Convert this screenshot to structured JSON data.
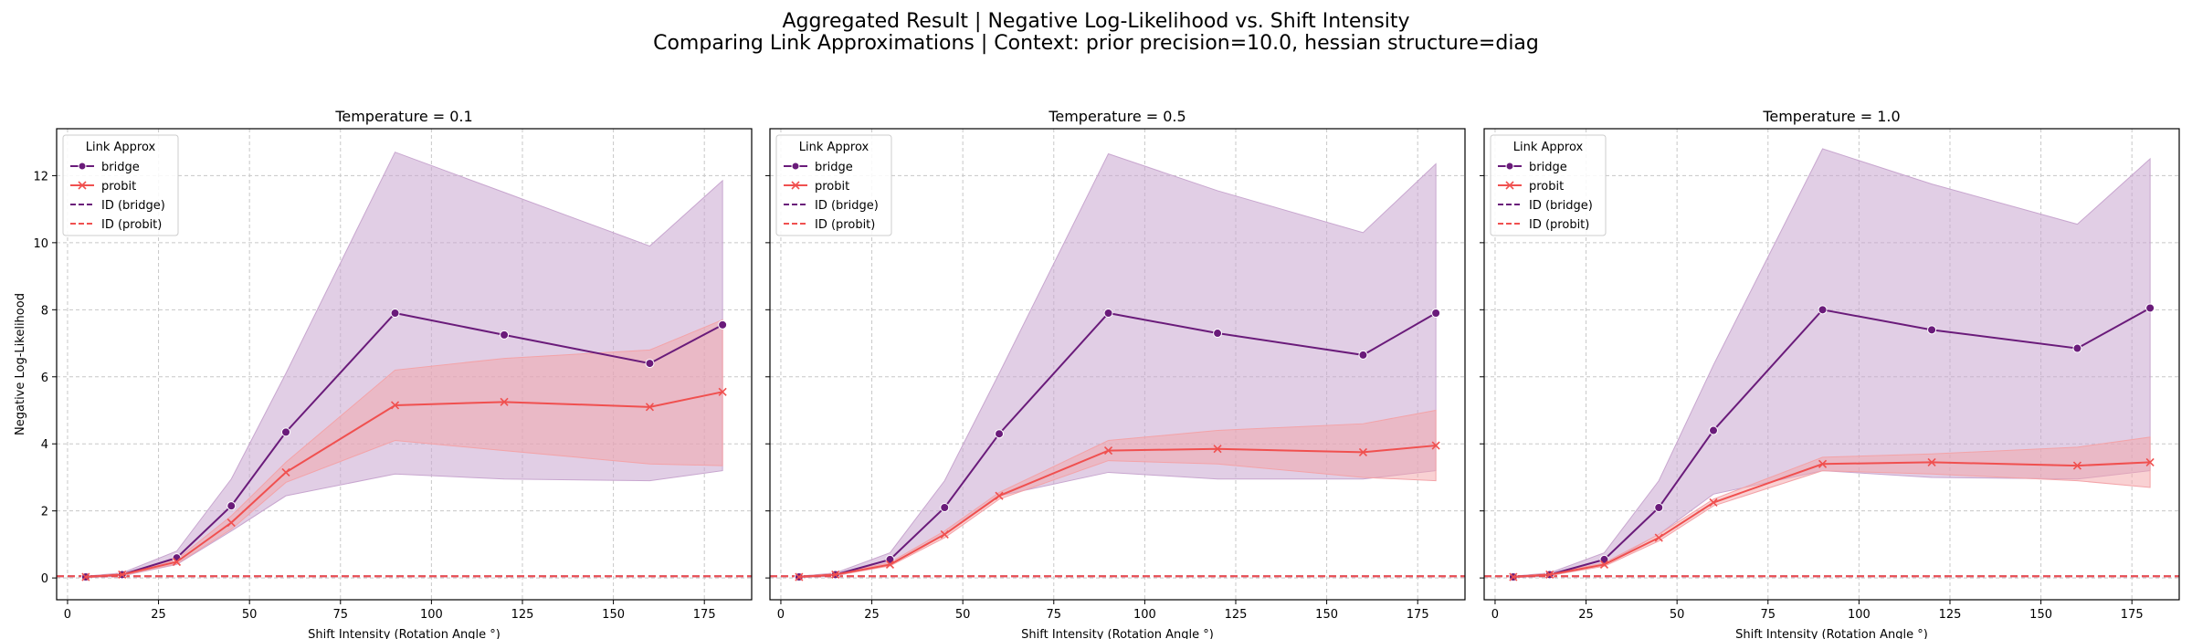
{
  "figure": {
    "title_line1": "Aggregated Result | Negative Log-Likelihood vs. Shift Intensity",
    "title_line2": "Comparing Link Approximations | Context: prior precision=10.0, hessian structure=diag"
  },
  "colors": {
    "bridge": "#6a1b7a",
    "probit": "#f0504f",
    "bridge_band": "#c8a6cf",
    "probit_band": "#f3a3a8",
    "grid": "#c8c8c8"
  },
  "chart_data": [
    {
      "type": "line",
      "title": "Temperature = 0.1",
      "xlabel": "Shift Intensity (Rotation Angle °)",
      "ylabel": "Negative Log-Likelihood",
      "xlim": [
        -3,
        188
      ],
      "ylim": [
        -0.65,
        13.4
      ],
      "xticks": [
        0,
        25,
        50,
        75,
        100,
        125,
        150,
        175
      ],
      "yticks": [
        0,
        2,
        4,
        6,
        8,
        10,
        12
      ],
      "grid": true,
      "legend": {
        "title": "Link Approx",
        "placement": "top-left",
        "entries": [
          "bridge",
          "probit",
          "ID (bridge)",
          "ID (probit)"
        ]
      },
      "x": [
        5,
        15,
        30,
        45,
        60,
        90,
        120,
        160,
        180
      ],
      "series": [
        {
          "name": "bridge",
          "marker": "circle",
          "values": [
            0.03,
            0.1,
            0.6,
            2.15,
            4.35,
            7.9,
            7.25,
            6.4,
            7.55
          ],
          "lower": [
            0.01,
            0.06,
            0.4,
            1.4,
            2.45,
            3.1,
            2.95,
            2.9,
            3.2
          ],
          "upper": [
            0.05,
            0.15,
            0.8,
            2.95,
            6.1,
            12.7,
            11.5,
            9.9,
            11.85
          ]
        },
        {
          "name": "probit",
          "marker": "x",
          "values": [
            0.03,
            0.1,
            0.48,
            1.65,
            3.15,
            5.15,
            5.25,
            5.1,
            5.55
          ],
          "lower": [
            0.01,
            0.07,
            0.42,
            1.45,
            2.85,
            4.1,
            3.8,
            3.4,
            3.35
          ],
          "upper": [
            0.05,
            0.13,
            0.55,
            1.85,
            3.45,
            6.2,
            6.55,
            6.8,
            7.7
          ]
        }
      ],
      "reference_lines": [
        {
          "name": "ID (bridge)",
          "y": 0.05
        },
        {
          "name": "ID (probit)",
          "y": 0.05
        }
      ]
    },
    {
      "type": "line",
      "title": "Temperature = 0.5",
      "xlabel": "Shift Intensity (Rotation Angle °)",
      "ylabel": "",
      "xlim": [
        -3,
        188
      ],
      "ylim": [
        -0.65,
        13.4
      ],
      "xticks": [
        0,
        25,
        50,
        75,
        100,
        125,
        150,
        175
      ],
      "yticks": [
        0,
        2,
        4,
        6,
        8,
        10,
        12
      ],
      "grid": true,
      "legend": {
        "title": "Link Approx",
        "placement": "top-left",
        "entries": [
          "bridge",
          "probit",
          "ID (bridge)",
          "ID (probit)"
        ]
      },
      "x": [
        5,
        15,
        30,
        45,
        60,
        90,
        120,
        160,
        180
      ],
      "series": [
        {
          "name": "bridge",
          "marker": "circle",
          "values": [
            0.03,
            0.1,
            0.55,
            2.1,
            4.3,
            7.9,
            7.3,
            6.65,
            7.9
          ],
          "lower": [
            0.01,
            0.06,
            0.4,
            1.3,
            2.45,
            3.15,
            2.95,
            2.95,
            3.2
          ],
          "upper": [
            0.05,
            0.15,
            0.75,
            2.9,
            6.1,
            12.65,
            11.55,
            10.3,
            12.35
          ]
        },
        {
          "name": "probit",
          "marker": "x",
          "values": [
            0.03,
            0.1,
            0.4,
            1.3,
            2.45,
            3.8,
            3.85,
            3.75,
            3.95
          ],
          "lower": [
            0.01,
            0.07,
            0.36,
            1.2,
            2.35,
            3.5,
            3.4,
            3.0,
            2.9
          ],
          "upper": [
            0.05,
            0.13,
            0.46,
            1.4,
            2.55,
            4.1,
            4.4,
            4.6,
            5.0
          ]
        }
      ],
      "reference_lines": [
        {
          "name": "ID (bridge)",
          "y": 0.05
        },
        {
          "name": "ID (probit)",
          "y": 0.05
        }
      ]
    },
    {
      "type": "line",
      "title": "Temperature = 1.0",
      "xlabel": "Shift Intensity (Rotation Angle °)",
      "ylabel": "",
      "xlim": [
        -3,
        188
      ],
      "ylim": [
        -0.65,
        13.4
      ],
      "xticks": [
        0,
        25,
        50,
        75,
        100,
        125,
        150,
        175
      ],
      "yticks": [
        0,
        2,
        4,
        6,
        8,
        10,
        12
      ],
      "grid": true,
      "legend": {
        "title": "Link Approx",
        "placement": "top-left",
        "entries": [
          "bridge",
          "probit",
          "ID (bridge)",
          "ID (probit)"
        ]
      },
      "x": [
        5,
        15,
        30,
        45,
        60,
        90,
        120,
        160,
        180
      ],
      "series": [
        {
          "name": "bridge",
          "marker": "circle",
          "values": [
            0.03,
            0.1,
            0.55,
            2.1,
            4.4,
            8.0,
            7.4,
            6.85,
            8.05
          ],
          "lower": [
            0.01,
            0.06,
            0.4,
            1.3,
            2.5,
            3.2,
            3.0,
            2.95,
            3.2
          ],
          "upper": [
            0.05,
            0.15,
            0.75,
            2.9,
            6.35,
            12.8,
            11.75,
            10.55,
            12.5
          ]
        },
        {
          "name": "probit",
          "marker": "x",
          "values": [
            0.03,
            0.1,
            0.4,
            1.2,
            2.25,
            3.4,
            3.45,
            3.35,
            3.45
          ],
          "lower": [
            0.01,
            0.07,
            0.35,
            1.1,
            2.15,
            3.2,
            3.1,
            2.9,
            2.7
          ],
          "upper": [
            0.05,
            0.13,
            0.45,
            1.3,
            2.35,
            3.6,
            3.7,
            3.9,
            4.2
          ]
        }
      ],
      "reference_lines": [
        {
          "name": "ID (bridge)",
          "y": 0.05
        },
        {
          "name": "ID (probit)",
          "y": 0.05
        }
      ]
    }
  ]
}
